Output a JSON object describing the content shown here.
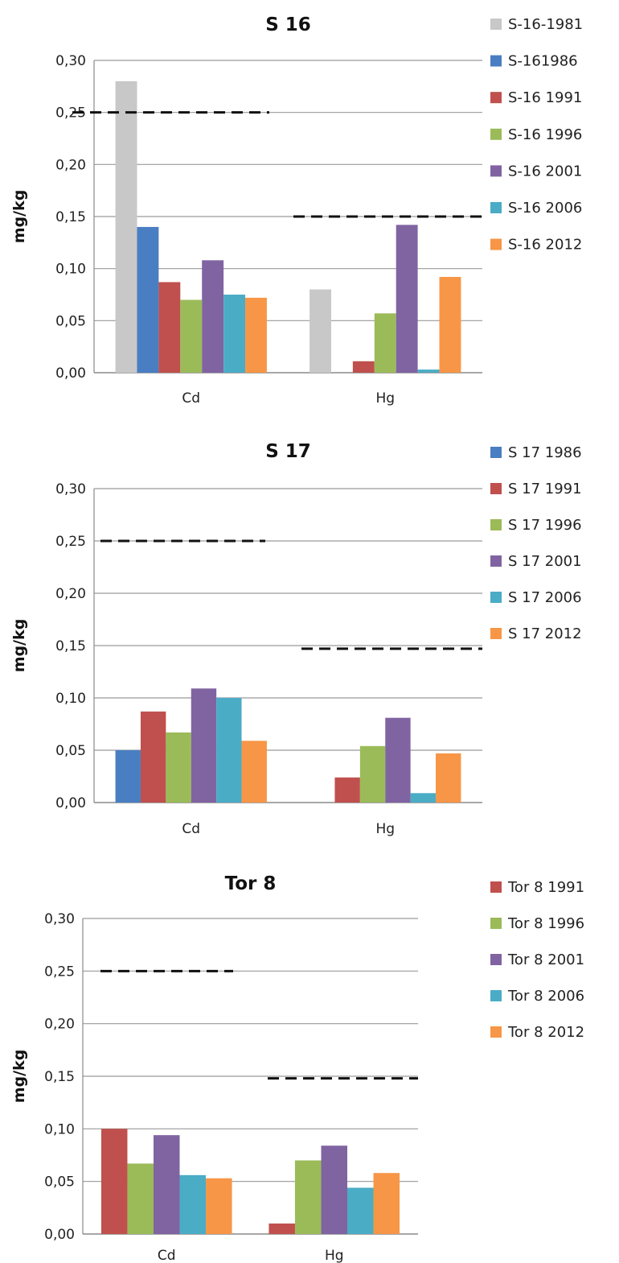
{
  "chart_data": [
    {
      "type": "bar",
      "title": "S 16",
      "ylabel": "mg/kg",
      "ylim": [
        0,
        0.3
      ],
      "yticks": [
        "0,00",
        "0,05",
        "0,10",
        "0,15",
        "0,20",
        "0,25",
        "0,30"
      ],
      "grid": true,
      "legend": "right",
      "categories": [
        "Cd",
        "Hg"
      ],
      "series": [
        {
          "name": "S-16-1981",
          "color": "#c8c8c8",
          "values": [
            0.28,
            0.08
          ]
        },
        {
          "name": "S-161986",
          "color": "#4a7ec2",
          "values": [
            0.14,
            null
          ]
        },
        {
          "name": "S-16 1991",
          "color": "#c0504d",
          "values": [
            0.087,
            0.011
          ]
        },
        {
          "name": "S-16 1996",
          "color": "#9bbb59",
          "values": [
            0.07,
            0.057
          ]
        },
        {
          "name": "S-16 2001",
          "color": "#8064a2",
          "values": [
            0.108,
            0.142
          ]
        },
        {
          "name": "S-16 2006",
          "color": "#4bacc6",
          "values": [
            0.075,
            0.003
          ]
        },
        {
          "name": "S-16 2012",
          "color": "#f79646",
          "values": [
            0.072,
            0.092
          ]
        }
      ],
      "reference_lines": [
        {
          "category": "Cd",
          "value": 0.25
        },
        {
          "category": "Hg",
          "value": 0.15
        }
      ]
    },
    {
      "type": "bar",
      "title": "S 17",
      "ylabel": "mg/kg",
      "ylim": [
        0,
        0.3
      ],
      "yticks": [
        "0,00",
        "0,05",
        "0,10",
        "0,15",
        "0,20",
        "0,25",
        "0,30"
      ],
      "grid": true,
      "legend": "right",
      "categories": [
        "Cd",
        "Hg"
      ],
      "series": [
        {
          "name": "S 17 1986",
          "color": "#4a7ec2",
          "values": [
            0.05,
            null
          ]
        },
        {
          "name": "S 17 1991",
          "color": "#c0504d",
          "values": [
            0.087,
            0.024
          ]
        },
        {
          "name": "S 17 1996",
          "color": "#9bbb59",
          "values": [
            0.067,
            0.054
          ]
        },
        {
          "name": "S 17 2001",
          "color": "#8064a2",
          "values": [
            0.109,
            0.081
          ]
        },
        {
          "name": "S 17 2006",
          "color": "#4bacc6",
          "values": [
            0.1,
            0.009
          ]
        },
        {
          "name": "S 17 2012",
          "color": "#f79646",
          "values": [
            0.059,
            0.047
          ]
        }
      ],
      "reference_lines": [
        {
          "category": "Cd",
          "value": 0.25
        },
        {
          "category": "Hg",
          "value": 0.147
        }
      ]
    },
    {
      "type": "bar",
      "title": "Tor 8",
      "ylabel": "mg/kg",
      "ylim": [
        0,
        0.3
      ],
      "yticks": [
        "0,00",
        "0,05",
        "0,10",
        "0,15",
        "0,20",
        "0,25",
        "0,30"
      ],
      "grid": true,
      "legend": "right",
      "categories": [
        "Cd",
        "Hg"
      ],
      "series": [
        {
          "name": "Tor 8 1991",
          "color": "#c0504d",
          "values": [
            0.1,
            0.01
          ]
        },
        {
          "name": "Tor 8 1996",
          "color": "#9bbb59",
          "values": [
            0.067,
            0.07
          ]
        },
        {
          "name": "Tor 8 2001",
          "color": "#8064a2",
          "values": [
            0.094,
            0.084
          ]
        },
        {
          "name": "Tor 8 2006",
          "color": "#4bacc6",
          "values": [
            0.056,
            0.044
          ]
        },
        {
          "name": "Tor 8 2012",
          "color": "#f79646",
          "values": [
            0.053,
            0.058
          ]
        }
      ],
      "reference_lines": [
        {
          "category": "Cd",
          "value": 0.25
        },
        {
          "category": "Hg",
          "value": 0.148
        }
      ]
    }
  ]
}
